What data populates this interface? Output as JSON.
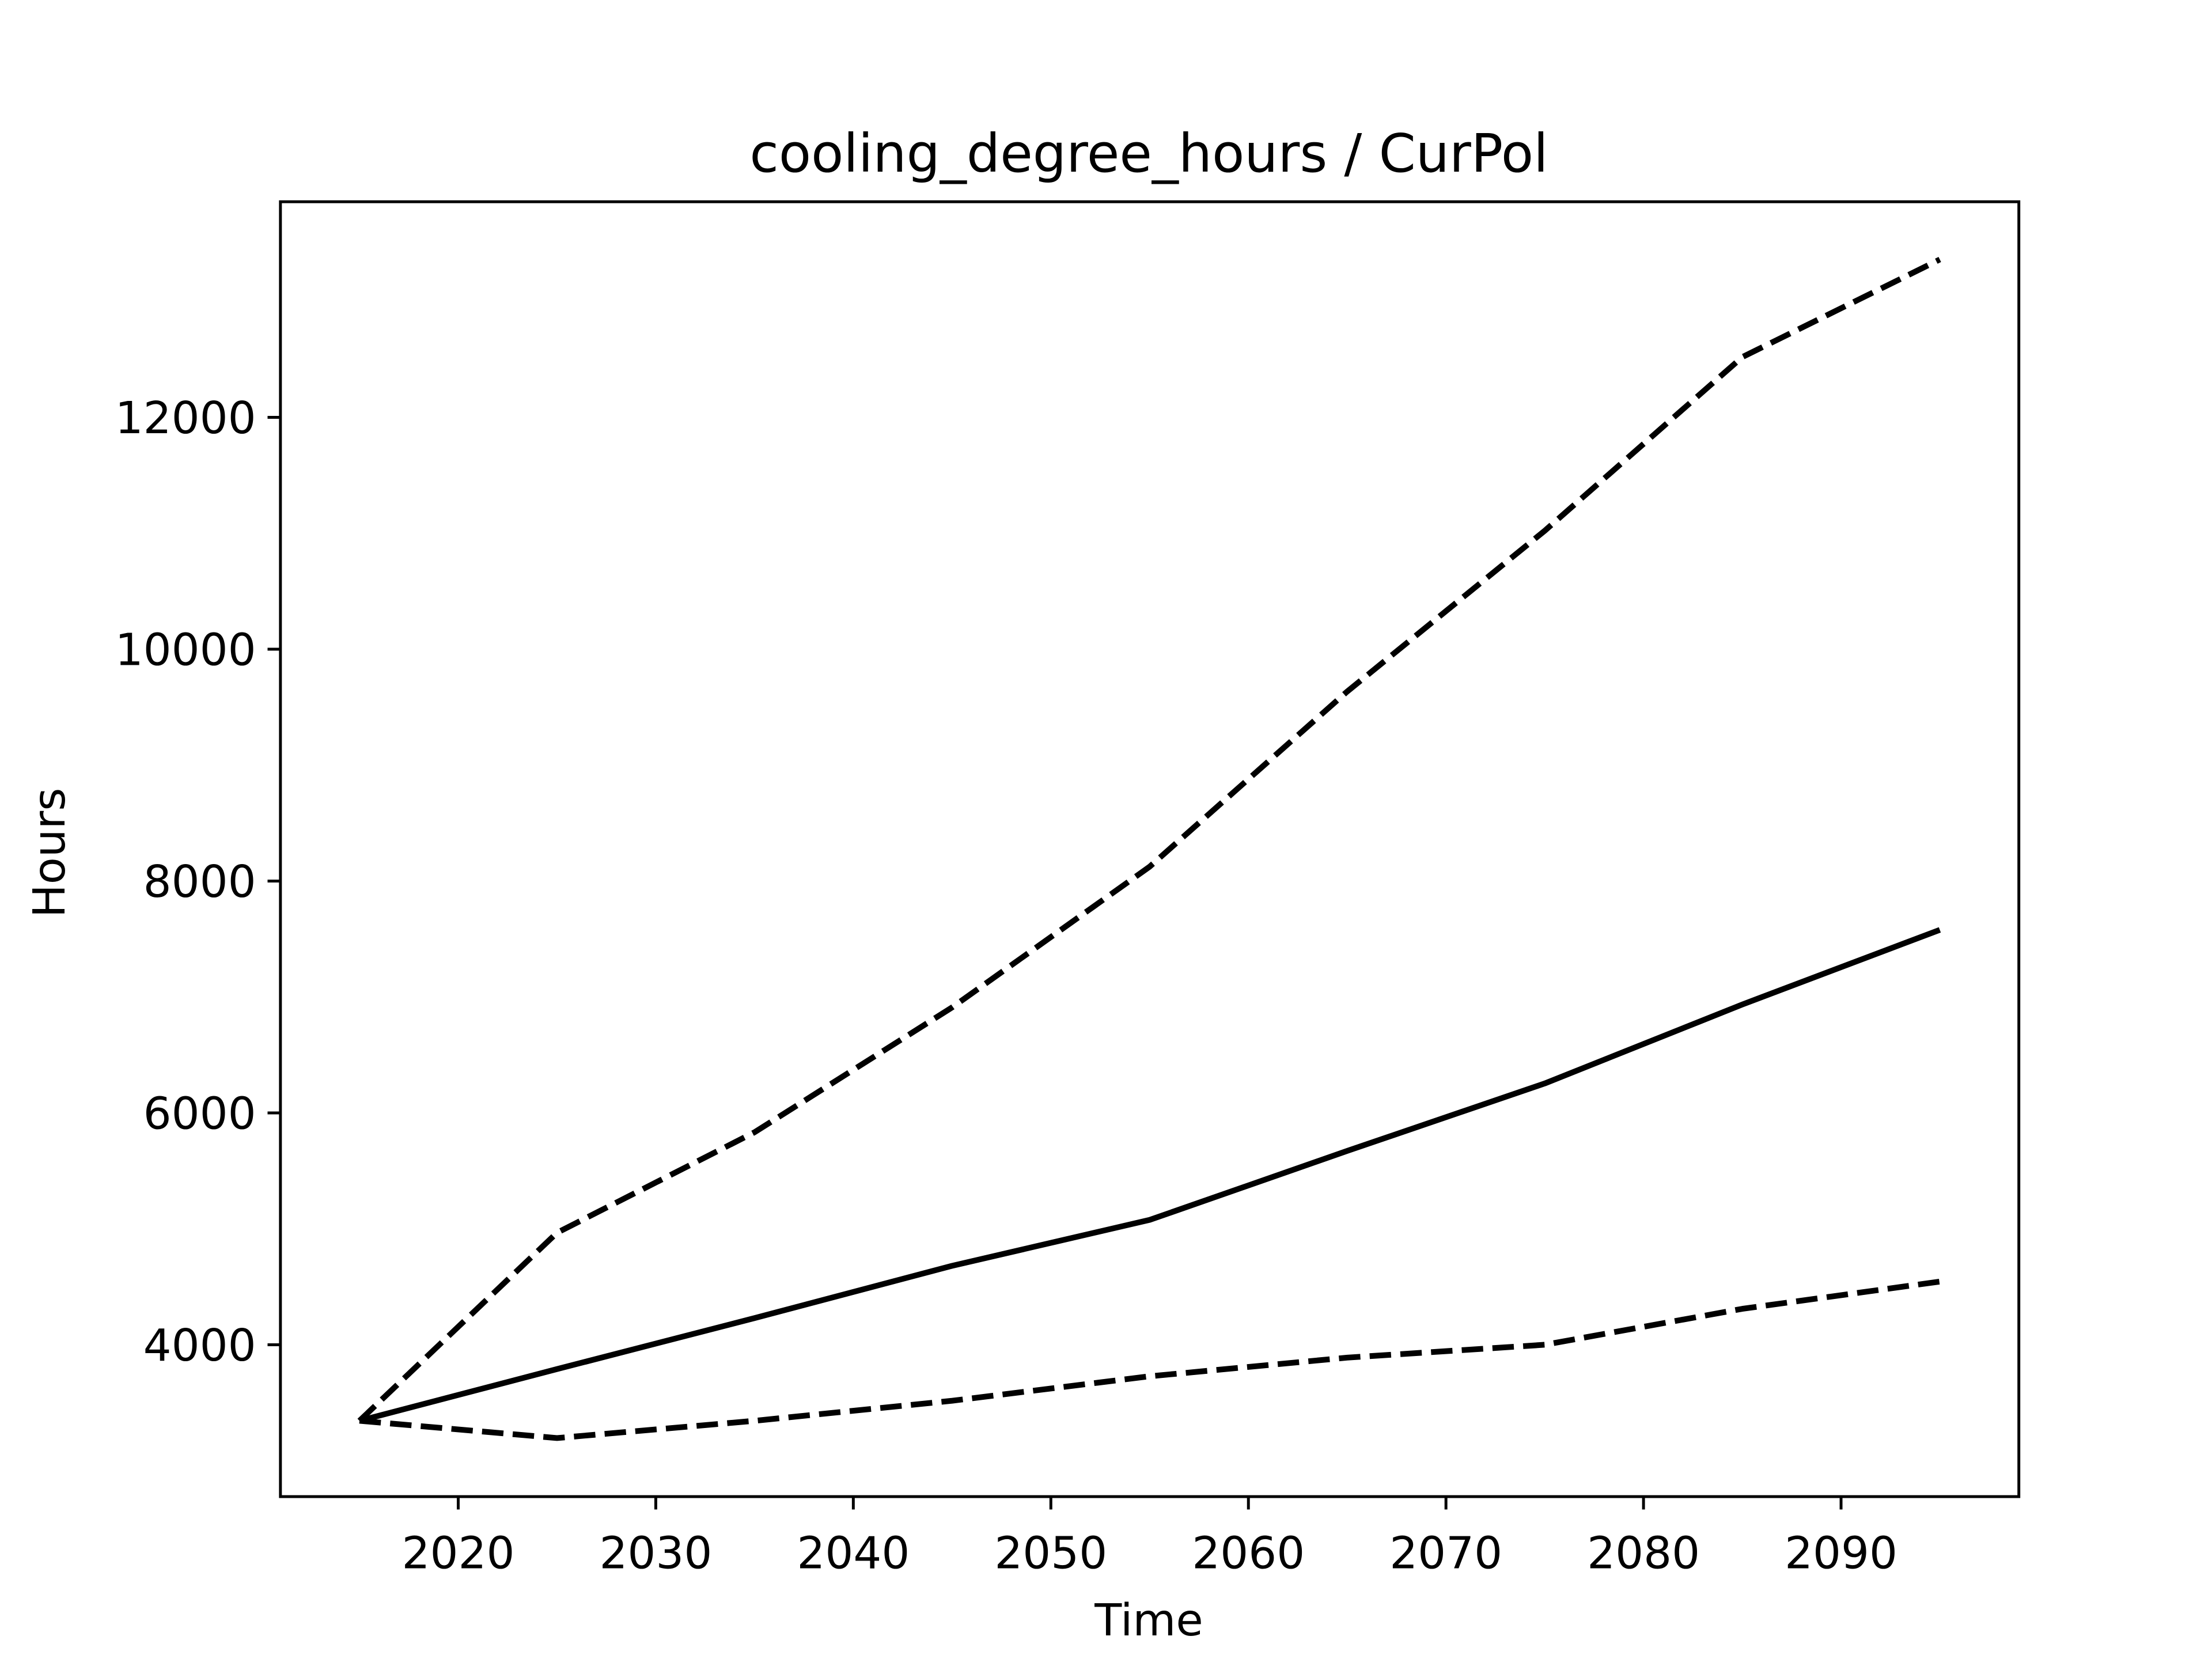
{
  "chart_data": {
    "type": "line",
    "title": "cooling_degree_hours / CurPol",
    "xlabel": "Time",
    "ylabel": "Hours",
    "x": [
      2015,
      2025,
      2035,
      2045,
      2055,
      2065,
      2075,
      2085,
      2095
    ],
    "series": [
      {
        "color": "#000000",
        "dash": "solid",
        "values": [
          3344,
          3790,
          4230,
          4681,
          5077,
          5672,
          6254,
          6935,
          7579
        ]
      },
      {
        "color": "#000000",
        "dash": "dashed",
        "values": [
          3344,
          4966,
          5833,
          6910,
          8124,
          9635,
          11022,
          12520,
          13362
        ]
      },
      {
        "color": "#000000",
        "dash": "dashed",
        "values": [
          3344,
          3195,
          3344,
          3517,
          3728,
          3889,
          4000,
          4310,
          4545
        ]
      }
    ],
    "xlim": [
      2011,
      2099
    ],
    "xticks": [
      2020,
      2030,
      2040,
      2050,
      2060,
      2070,
      2080,
      2090
    ],
    "ylim": [
      2690,
      13860
    ],
    "yticks": [
      4000,
      6000,
      8000,
      10000,
      12000
    ],
    "grid": false
  }
}
